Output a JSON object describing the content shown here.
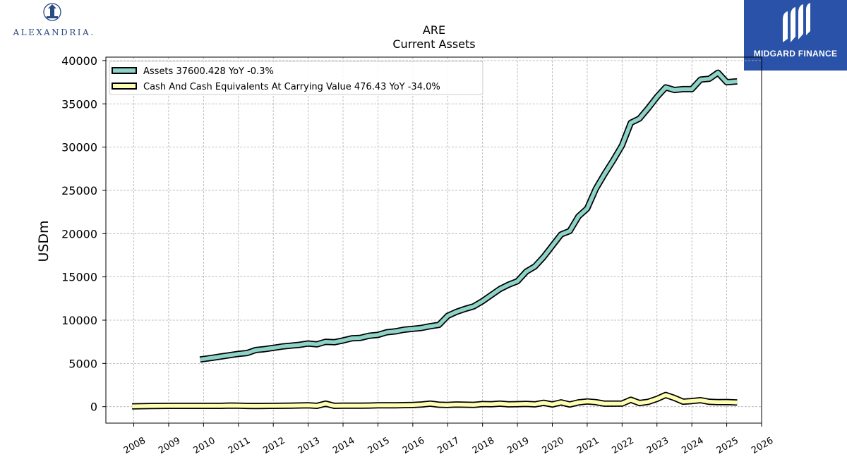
{
  "logos": {
    "left_text": "ALEXANDRIA.",
    "right_text": "MIDGARD FINANCE"
  },
  "chart_data": {
    "type": "line",
    "title": "ARE",
    "subtitle": "Current  Assets",
    "ylabel": "USDm",
    "xlabel": "",
    "xlim": [
      2007.2,
      2026.0
    ],
    "ylim": [
      -1900,
      40400
    ],
    "x_ticks": [
      2008,
      2009,
      2010,
      2011,
      2012,
      2013,
      2014,
      2015,
      2016,
      2017,
      2018,
      2019,
      2020,
      2021,
      2022,
      2023,
      2024,
      2025,
      2026
    ],
    "y_ticks": [
      0,
      5000,
      10000,
      15000,
      20000,
      25000,
      30000,
      35000,
      40000
    ],
    "grid": true,
    "legend_position": "top-left",
    "series": [
      {
        "name": "Assets  37600.428 YoY -0.3%",
        "color": "#8dd3c7",
        "points": [
          [
            2009.9,
            5450
          ],
          [
            2010.25,
            5650
          ],
          [
            2010.5,
            5800
          ],
          [
            2010.75,
            5950
          ],
          [
            2011.0,
            6100
          ],
          [
            2011.25,
            6200
          ],
          [
            2011.5,
            6550
          ],
          [
            2011.75,
            6650
          ],
          [
            2012.0,
            6800
          ],
          [
            2012.25,
            6950
          ],
          [
            2012.5,
            7050
          ],
          [
            2012.75,
            7150
          ],
          [
            2013.0,
            7300
          ],
          [
            2013.25,
            7200
          ],
          [
            2013.5,
            7500
          ],
          [
            2013.75,
            7450
          ],
          [
            2014.0,
            7650
          ],
          [
            2014.25,
            7900
          ],
          [
            2014.5,
            7950
          ],
          [
            2014.75,
            8200
          ],
          [
            2015.0,
            8300
          ],
          [
            2015.25,
            8600
          ],
          [
            2015.5,
            8700
          ],
          [
            2015.75,
            8900
          ],
          [
            2016.0,
            9000
          ],
          [
            2016.25,
            9100
          ],
          [
            2016.5,
            9300
          ],
          [
            2016.75,
            9450
          ],
          [
            2017.0,
            10500
          ],
          [
            2017.25,
            10950
          ],
          [
            2017.5,
            11300
          ],
          [
            2017.75,
            11600
          ],
          [
            2018.0,
            12200
          ],
          [
            2018.25,
            12900
          ],
          [
            2018.5,
            13600
          ],
          [
            2018.75,
            14100
          ],
          [
            2019.0,
            14500
          ],
          [
            2019.25,
            15600
          ],
          [
            2019.5,
            16200
          ],
          [
            2019.75,
            17300
          ],
          [
            2020.0,
            18600
          ],
          [
            2020.25,
            19900
          ],
          [
            2020.5,
            20300
          ],
          [
            2020.75,
            22000
          ],
          [
            2021.0,
            22900
          ],
          [
            2021.25,
            25200
          ],
          [
            2021.5,
            26900
          ],
          [
            2021.75,
            28500
          ],
          [
            2022.0,
            30200
          ],
          [
            2022.25,
            32800
          ],
          [
            2022.5,
            33300
          ],
          [
            2022.75,
            34500
          ],
          [
            2023.0,
            35800
          ],
          [
            2023.25,
            36900
          ],
          [
            2023.5,
            36600
          ],
          [
            2023.75,
            36700
          ],
          [
            2024.0,
            36700
          ],
          [
            2024.25,
            37800
          ],
          [
            2024.5,
            37900
          ],
          [
            2024.75,
            38600
          ],
          [
            2025.0,
            37500
          ],
          [
            2025.3,
            37600
          ]
        ]
      },
      {
        "name": "Cash And Cash Equivalents At Carrying Value  476.43 YoY -34.0%",
        "color": "#ffffb3",
        "points": [
          [
            2007.95,
            30
          ],
          [
            2008.5,
            70
          ],
          [
            2009.0,
            100
          ],
          [
            2009.5,
            100
          ],
          [
            2010.0,
            100
          ],
          [
            2010.5,
            100
          ],
          [
            2010.75,
            130
          ],
          [
            2011.0,
            110
          ],
          [
            2011.25,
            90
          ],
          [
            2011.5,
            80
          ],
          [
            2011.75,
            90
          ],
          [
            2012.0,
            100
          ],
          [
            2012.5,
            110
          ],
          [
            2013.0,
            150
          ],
          [
            2013.25,
            100
          ],
          [
            2013.5,
            350
          ],
          [
            2013.75,
            100
          ],
          [
            2014.0,
            110
          ],
          [
            2014.25,
            120
          ],
          [
            2014.5,
            110
          ],
          [
            2014.75,
            130
          ],
          [
            2015.0,
            150
          ],
          [
            2015.5,
            160
          ],
          [
            2015.75,
            180
          ],
          [
            2016.0,
            200
          ],
          [
            2016.25,
            250
          ],
          [
            2016.5,
            350
          ],
          [
            2016.75,
            230
          ],
          [
            2017.0,
            200
          ],
          [
            2017.25,
            250
          ],
          [
            2017.5,
            230
          ],
          [
            2017.75,
            210
          ],
          [
            2018.0,
            300
          ],
          [
            2018.25,
            280
          ],
          [
            2018.5,
            350
          ],
          [
            2018.75,
            270
          ],
          [
            2019.0,
            290
          ],
          [
            2019.25,
            320
          ],
          [
            2019.5,
            270
          ],
          [
            2019.75,
            450
          ],
          [
            2020.0,
            250
          ],
          [
            2020.25,
            500
          ],
          [
            2020.5,
            250
          ],
          [
            2020.75,
            500
          ],
          [
            2021.0,
            600
          ],
          [
            2021.25,
            520
          ],
          [
            2021.5,
            350
          ],
          [
            2021.75,
            350
          ],
          [
            2022.0,
            360
          ],
          [
            2022.25,
            800
          ],
          [
            2022.5,
            420
          ],
          [
            2022.75,
            550
          ],
          [
            2023.0,
            900
          ],
          [
            2023.25,
            1350
          ],
          [
            2023.5,
            1000
          ],
          [
            2023.75,
            580
          ],
          [
            2024.0,
            650
          ],
          [
            2024.25,
            750
          ],
          [
            2024.5,
            560
          ],
          [
            2024.75,
            530
          ],
          [
            2025.0,
            540
          ],
          [
            2025.3,
            476
          ]
        ]
      }
    ]
  }
}
